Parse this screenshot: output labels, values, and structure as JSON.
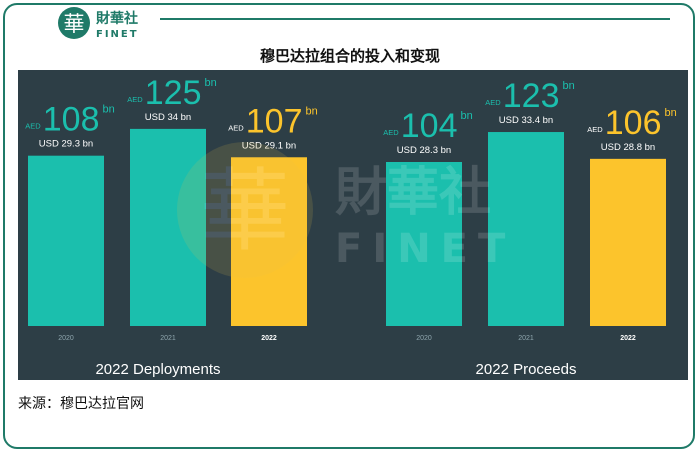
{
  "header": {
    "logo_glyph": "華",
    "logo_cn": "財華社",
    "logo_en": "FINET"
  },
  "title": "穆巴达拉组合的投入和变现",
  "source": "来源：穆巴达拉官网",
  "colors": {
    "panel": "#2d3e46",
    "teal": "#1bbfad",
    "yellow": "#fcc42c",
    "brand": "#1f7a68"
  },
  "chart_data": [
    {
      "type": "bar",
      "title": "2022 Deployments",
      "categories": [
        "2020",
        "2021",
        "2022"
      ],
      "values": [
        108,
        125,
        107
      ],
      "value_prefix": "AED",
      "value_unit": "bn",
      "secondary_labels": [
        "USD 29.3 bn",
        "USD 34 bn",
        "USD 29.1 bn"
      ],
      "highlight": "2022",
      "ylim": [
        0,
        130
      ]
    },
    {
      "type": "bar",
      "title": "2022 Proceeds",
      "categories": [
        "2020",
        "2021",
        "2022"
      ],
      "values": [
        104,
        123,
        106
      ],
      "value_prefix": "AED",
      "value_unit": "bn",
      "secondary_labels": [
        "USD 28.3 bn",
        "USD 33.4 bn",
        "USD 28.8 bn"
      ],
      "highlight": "2022",
      "ylim": [
        0,
        130
      ]
    }
  ]
}
